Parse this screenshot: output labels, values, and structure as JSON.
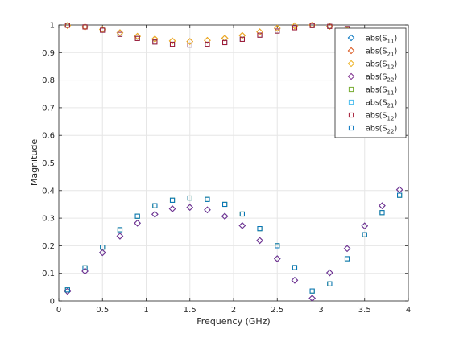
{
  "chart_data": {
    "type": "scatter",
    "title": "",
    "xlabel": "Frequency (GHz)",
    "ylabel": "Magnitude",
    "xlim": [
      0,
      4
    ],
    "ylim": [
      0,
      1
    ],
    "xticks": [
      0,
      0.5,
      1,
      1.5,
      2,
      2.5,
      3,
      3.5,
      4
    ],
    "yticks": [
      0,
      0.1,
      0.2,
      0.3,
      0.4,
      0.5,
      0.6,
      0.7,
      0.8,
      0.9,
      1
    ],
    "xtick_labels": [
      "0",
      "0.5",
      "1",
      "1.5",
      "2",
      "2.5",
      "3",
      "3.5",
      "4"
    ],
    "ytick_labels": [
      "0",
      "0.1",
      "0.2",
      "0.3",
      "0.4",
      "0.5",
      "0.6",
      "0.7",
      "0.8",
      "0.9",
      "1"
    ],
    "grid": true,
    "legend_location": "top-right",
    "x": [
      0.1,
      0.3,
      0.5,
      0.7,
      0.9,
      1.1,
      1.3,
      1.5,
      1.7,
      1.9,
      2.1,
      2.3,
      2.5,
      2.7,
      2.9,
      3.1,
      3.3,
      3.5,
      3.7,
      3.9
    ],
    "series": [
      {
        "name": "abs(S11)",
        "label_main": "abs(S",
        "label_sub": "11",
        "label_end": ")",
        "marker": "diamond",
        "color": "#0072BD",
        "values": [
          0.035,
          0.108,
          0.175,
          0.235,
          0.282,
          0.314,
          0.334,
          0.339,
          0.33,
          0.307,
          0.273,
          0.219,
          0.153,
          0.075,
          0.01,
          0.102,
          0.19,
          0.272,
          0.345,
          0.403
        ]
      },
      {
        "name": "abs(S21)",
        "label_main": "abs(S",
        "label_sub": "21",
        "label_end": ")",
        "marker": "diamond",
        "color": "#D95319",
        "values": [
          0.998,
          0.993,
          0.984,
          0.972,
          0.959,
          0.949,
          0.942,
          0.94,
          0.944,
          0.952,
          0.962,
          0.975,
          0.988,
          0.997,
          1.0,
          0.995,
          0.982,
          0.963,
          0.938,
          0.915
        ]
      },
      {
        "name": "abs(S12)",
        "label_main": "abs(S",
        "label_sub": "12",
        "label_end": ")",
        "marker": "diamond",
        "color": "#EDB120",
        "values": [
          0.998,
          0.993,
          0.984,
          0.972,
          0.959,
          0.949,
          0.942,
          0.94,
          0.944,
          0.952,
          0.962,
          0.975,
          0.988,
          0.997,
          1.0,
          0.995,
          0.982,
          0.963,
          0.938,
          0.915
        ]
      },
      {
        "name": "abs(S22)",
        "label_main": "abs(S",
        "label_sub": "22",
        "label_end": ")",
        "marker": "diamond",
        "color": "#7E2F8E",
        "values": [
          0.035,
          0.108,
          0.175,
          0.235,
          0.282,
          0.314,
          0.334,
          0.339,
          0.33,
          0.307,
          0.273,
          0.219,
          0.153,
          0.075,
          0.01,
          0.102,
          0.19,
          0.272,
          0.345,
          0.403
        ]
      },
      {
        "name": "abs(S11)",
        "label_main": "abs(S",
        "label_sub": "11",
        "label_end": ")",
        "marker": "square",
        "color": "#77AC30",
        "values": [
          0.04,
          0.12,
          0.195,
          0.258,
          0.307,
          0.345,
          0.365,
          0.373,
          0.368,
          0.35,
          0.315,
          0.262,
          0.2,
          0.121,
          0.036,
          0.062,
          0.153,
          0.24,
          0.32,
          0.383
        ]
      },
      {
        "name": "abs(S21)",
        "label_main": "abs(S",
        "label_sub": "21",
        "label_end": ")",
        "marker": "square",
        "color": "#4DBEEE",
        "values": [
          0.999,
          0.993,
          0.981,
          0.966,
          0.951,
          0.938,
          0.93,
          0.927,
          0.93,
          0.936,
          0.948,
          0.963,
          0.978,
          0.99,
          0.998,
          0.995,
          0.987,
          0.971,
          0.947,
          0.924
        ]
      },
      {
        "name": "abs(S12)",
        "label_main": "abs(S",
        "label_sub": "12",
        "label_end": ")",
        "marker": "square",
        "color": "#A2142F",
        "values": [
          0.999,
          0.993,
          0.981,
          0.966,
          0.951,
          0.938,
          0.93,
          0.927,
          0.93,
          0.936,
          0.948,
          0.963,
          0.978,
          0.99,
          0.998,
          0.995,
          0.987,
          0.971,
          0.947,
          0.924
        ]
      },
      {
        "name": "abs(S22)",
        "label_main": "abs(S",
        "label_sub": "22",
        "label_end": ")",
        "marker": "square",
        "color": "#0072BD",
        "values": [
          0.04,
          0.12,
          0.195,
          0.258,
          0.307,
          0.345,
          0.365,
          0.373,
          0.368,
          0.35,
          0.315,
          0.262,
          0.2,
          0.121,
          0.036,
          0.062,
          0.153,
          0.24,
          0.32,
          0.383
        ]
      }
    ]
  }
}
